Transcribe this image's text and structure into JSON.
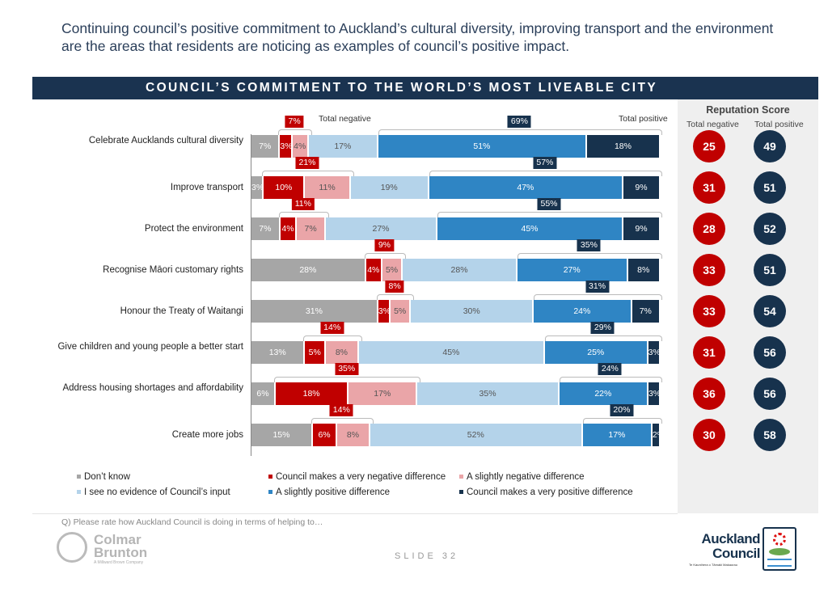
{
  "headline": "Continuing council’s positive commitment to Auckland’s cultural diversity, improving transport and the environment are the areas that residents are noticing as examples of council’s positive impact.",
  "banner": "COUNCIL’S COMMITMENT TO THE WORLD’S MOST LIVEABLE CITY",
  "labels": {
    "total_negative": "Total negative",
    "total_positive": "Total positive"
  },
  "reputation": {
    "title": "Reputation Score",
    "neg_label": "Total negative",
    "pos_label": "Total positive",
    "negative": [
      "25",
      "31",
      "28",
      "33",
      "33",
      "31",
      "36",
      "30"
    ],
    "positive": [
      "49",
      "51",
      "52",
      "51",
      "54",
      "56",
      "56",
      "58"
    ]
  },
  "question": "Q) Please rate how Auckland Council is doing in terms of helping to…",
  "slide": "SLIDE 32",
  "logos": {
    "left": "Colmar Brunton",
    "left_sub": "A Millward Brown Company",
    "right": "Auckland Council",
    "right_sub": "Te Kaunihera o Tāmaki Makaurau"
  },
  "colors": {
    "dont_know": "#a6a6a6",
    "very_negative": "#c00000",
    "slightly_negative": "#eaa5a8",
    "no_evidence": "#b4d3ea",
    "slightly_positive": "#2f85c4",
    "very_positive": "#17324d"
  },
  "chart_data": {
    "type": "bar",
    "stacked": true,
    "orientation": "horizontal",
    "categories": [
      "Celebrate Aucklands cultural diversity",
      "Improve transport",
      "Protect the environment",
      "Recognise Māori customary rights",
      "Honour the Treaty of Waitangi",
      "Give children and young people a better start",
      "Address housing shortages and affordability",
      "Create more jobs"
    ],
    "series": [
      {
        "name": "Don’t know",
        "values": [
          7,
          3,
          7,
          28,
          31,
          13,
          6,
          15
        ]
      },
      {
        "name": "Council makes a very negative difference",
        "values": [
          3,
          10,
          4,
          4,
          3,
          5,
          18,
          6
        ]
      },
      {
        "name": "A slightly negative difference",
        "values": [
          4,
          11,
          7,
          5,
          5,
          8,
          17,
          8
        ]
      },
      {
        "name": "I see no evidence of Council’s input",
        "values": [
          17,
          19,
          27,
          28,
          30,
          45,
          35,
          52
        ]
      },
      {
        "name": "A slightly positive difference",
        "values": [
          51,
          47,
          45,
          27,
          24,
          25,
          22,
          17
        ]
      },
      {
        "name": "Council makes a very positive difference",
        "values": [
          18,
          9,
          9,
          8,
          7,
          3,
          3,
          2
        ]
      }
    ],
    "total_negative": [
      7,
      21,
      11,
      9,
      8,
      14,
      35,
      14
    ],
    "total_positive": [
      69,
      57,
      55,
      35,
      31,
      29,
      24,
      20
    ],
    "unit": "%",
    "legend_position": "bottom"
  }
}
